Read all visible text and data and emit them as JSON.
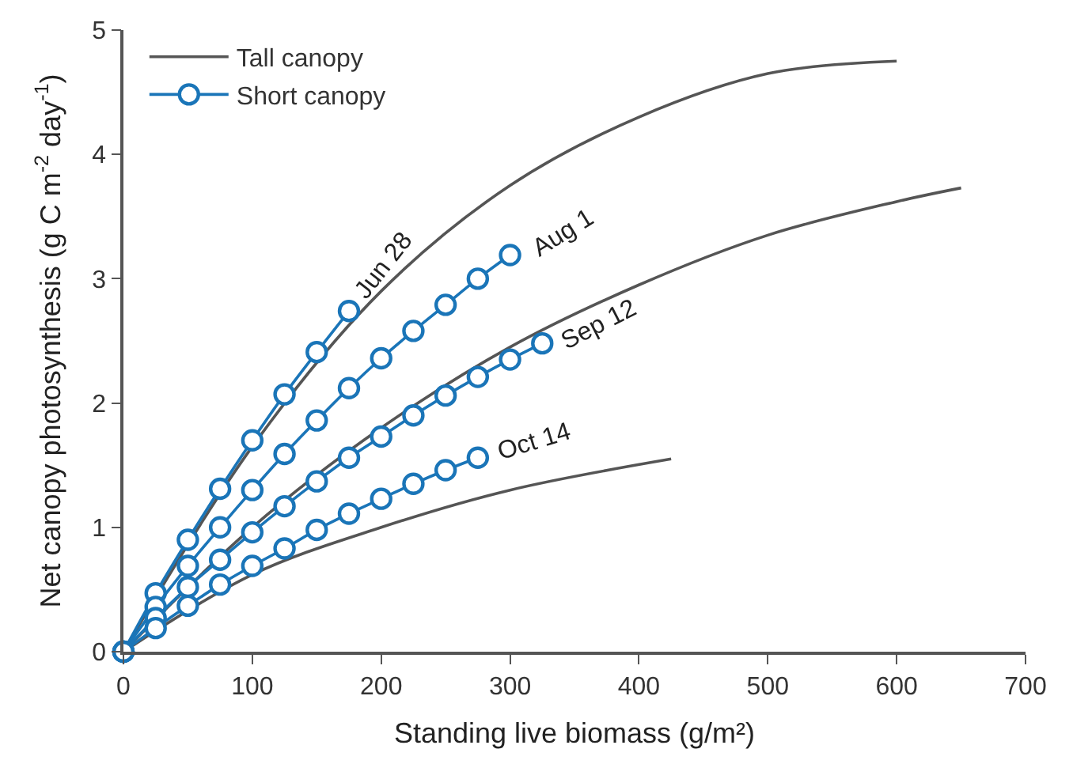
{
  "chart_data": {
    "type": "line",
    "xlabel": "Standing live biomass (g/m²)",
    "ylabel": "Net canopy photosynthesis (g C m$^{-2}$ day$^{-1}$)",
    "xlim": [
      0,
      700
    ],
    "xticks": [
      0,
      100,
      200,
      300,
      400,
      500,
      600,
      700
    ],
    "ylim": [
      0,
      5
    ],
    "yticks": [
      0,
      1,
      2,
      3,
      4,
      5
    ],
    "legend": "top left",
    "series": [
      {
        "name": "Tall canopy",
        "color": "#555555",
        "marker": "none",
        "line_style": "solid",
        "x": [
          0,
          100,
          200,
          300,
          400,
          500,
          600
        ],
        "values": [
          0,
          1.65,
          2.9,
          3.75,
          4.3,
          4.65,
          4.75
        ]
      },
      {
        "color": "#555555",
        "marker": "none",
        "line_style": "solid",
        "x": [
          0,
          100,
          200,
          300,
          400,
          500,
          600,
          650
        ],
        "values": [
          0,
          1.0,
          1.8,
          2.45,
          2.95,
          3.35,
          3.62,
          3.73
        ]
      },
      {
        "color": "#555555",
        "marker": "none",
        "line_style": "solid",
        "x": [
          0,
          100,
          200,
          300,
          425
        ],
        "values": [
          0,
          0.62,
          1.0,
          1.3,
          1.55
        ]
      },
      {
        "name": "Short canopy",
        "color": "#1a75b8",
        "marker": "circle",
        "line_style": "solid",
        "x": [
          0,
          25,
          50,
          75,
          100,
          125,
          150,
          175
        ],
        "values": [
          0,
          0.47,
          0.9,
          1.31,
          1.7,
          2.07,
          2.41,
          2.74
        ]
      },
      {
        "color": "#1a75b8",
        "marker": "circle",
        "line_style": "solid",
        "x": [
          0,
          25,
          50,
          75,
          100,
          125,
          150,
          175,
          200,
          225,
          250,
          275,
          300
        ],
        "values": [
          0,
          0.36,
          0.69,
          1.0,
          1.3,
          1.59,
          1.86,
          2.12,
          2.36,
          2.58,
          2.79,
          3.0,
          3.19
        ]
      },
      {
        "color": "#1a75b8",
        "marker": "circle",
        "line_style": "solid",
        "x": [
          0,
          25,
          50,
          75,
          100,
          125,
          150,
          175,
          200,
          225,
          250,
          275,
          300,
          325
        ],
        "values": [
          0,
          0.27,
          0.52,
          0.74,
          0.96,
          1.17,
          1.37,
          1.56,
          1.73,
          1.9,
          2.06,
          2.21,
          2.35,
          2.48
        ]
      },
      {
        "color": "#1a75b8",
        "marker": "circle",
        "line_style": "solid",
        "x": [
          0,
          25,
          50,
          75,
          100,
          125,
          150,
          175,
          200,
          225,
          250,
          275
        ],
        "values": [
          0,
          0.19,
          0.37,
          0.54,
          0.69,
          0.83,
          0.98,
          1.11,
          1.23,
          1.35,
          1.46,
          1.56
        ]
      }
    ],
    "annotations": [
      {
        "text": "Jun 28",
        "x": 175,
        "y": 2.74
      },
      {
        "text": "Aug 1",
        "x": 300,
        "y": 3.19
      },
      {
        "text": "Sep 12",
        "x": 325,
        "y": 2.48
      },
      {
        "text": "Oct 14",
        "x": 275,
        "y": 1.56
      }
    ]
  }
}
